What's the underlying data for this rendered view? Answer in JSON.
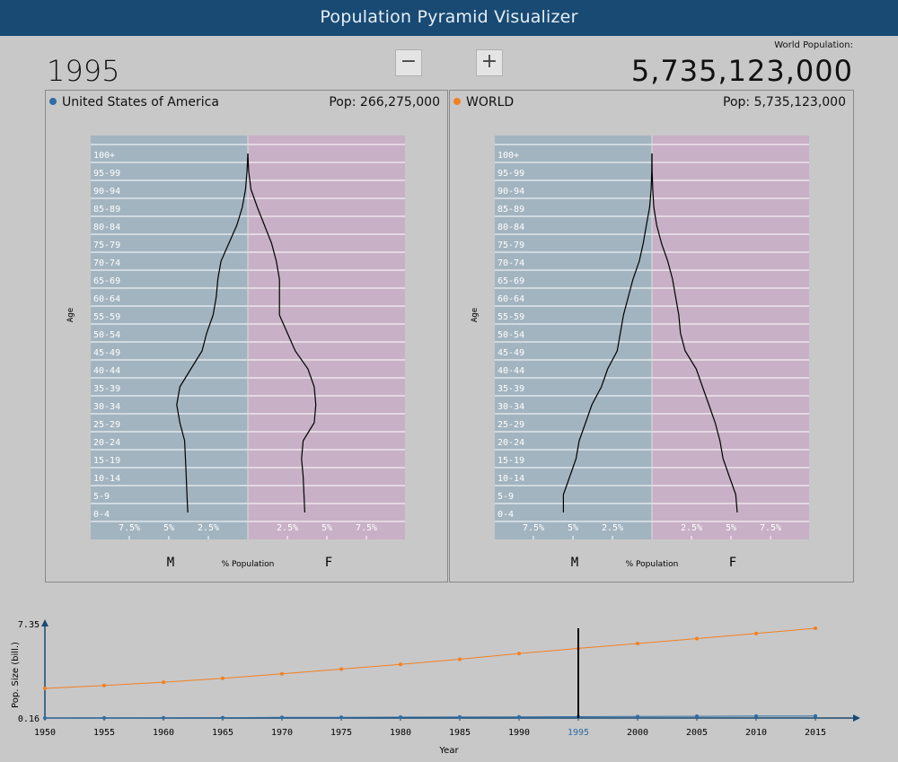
{
  "header": {
    "title": "Population Pyramid Visualizer"
  },
  "controls": {
    "year": "1995",
    "minus": "−",
    "plus": "+"
  },
  "world": {
    "label": "World Population:",
    "value": "5,735,123,000"
  },
  "colors": {
    "male": "#a2b4c0",
    "female": "#c8b0c6",
    "usa": "#2f6da3",
    "world": "#f28020",
    "header": "#184a73"
  },
  "age_groups": [
    "0-4",
    "5-9",
    "10-14",
    "15-19",
    "20-24",
    "25-29",
    "30-34",
    "35-39",
    "40-44",
    "45-49",
    "50-54",
    "55-59",
    "60-64",
    "65-69",
    "70-74",
    "75-79",
    "80-84",
    "85-89",
    "90-94",
    "95-99",
    "100+"
  ],
  "pyramid_axis": {
    "ylabel": "Age",
    "xlabel": "% Population",
    "male": "M",
    "female": "F",
    "ticks": [
      "7.5%",
      "5%",
      "2.5%",
      "2.5%",
      "5%",
      "7.5%"
    ]
  },
  "panels": [
    {
      "name": "United States of America",
      "pop_label": "Pop: 266,275,000",
      "dot_color": "#2f6da3",
      "male": [
        3.8,
        3.85,
        3.9,
        3.95,
        4.0,
        4.3,
        4.5,
        4.3,
        3.6,
        2.9,
        2.6,
        2.2,
        2.0,
        1.9,
        1.7,
        1.2,
        0.7,
        0.35,
        0.15,
        0.05,
        0.0
      ],
      "female": [
        3.6,
        3.55,
        3.5,
        3.4,
        3.5,
        4.2,
        4.3,
        4.2,
        3.8,
        3.0,
        2.5,
        2.0,
        2.0,
        2.0,
        1.8,
        1.5,
        1.05,
        0.6,
        0.2,
        0.05,
        0.0
      ]
    },
    {
      "name": "WORLD",
      "pop_label": "Pop: 5,735,123,000",
      "dot_color": "#f28020",
      "male": [
        5.6,
        5.6,
        5.2,
        4.8,
        4.6,
        4.2,
        3.8,
        3.2,
        2.8,
        2.2,
        2.0,
        1.8,
        1.5,
        1.2,
        0.8,
        0.55,
        0.35,
        0.15,
        0.05,
        0.01,
        0.0
      ],
      "female": [
        5.4,
        5.3,
        4.9,
        4.5,
        4.3,
        4.0,
        3.6,
        3.2,
        2.8,
        2.1,
        1.8,
        1.7,
        1.5,
        1.3,
        1.0,
        0.6,
        0.3,
        0.12,
        0.05,
        0.01,
        0.0
      ]
    }
  ],
  "chart_data": {
    "type": "line",
    "x": [
      1950,
      1955,
      1960,
      1965,
      1970,
      1975,
      1980,
      1985,
      1990,
      1995,
      2000,
      2005,
      2010,
      2015
    ],
    "series": [
      {
        "name": "WORLD",
        "color": "#f28020",
        "values": [
          2.53,
          2.77,
          3.03,
          3.34,
          3.7,
          4.08,
          4.46,
          4.87,
          5.33,
          5.74,
          6.13,
          6.52,
          6.93,
          7.35
        ]
      },
      {
        "name": "United States of America",
        "color": "#2f6da3",
        "values": [
          0.16,
          0.17,
          0.18,
          0.19,
          0.21,
          0.22,
          0.23,
          0.24,
          0.25,
          0.27,
          0.28,
          0.3,
          0.31,
          0.32
        ]
      }
    ],
    "xlabel": "Year",
    "ylabel": "Pop. Size (bill.)",
    "ylim": [
      0.16,
      7.35
    ],
    "ytick_labels": [
      "7.35",
      "0.16"
    ],
    "xtick_labels": [
      "1950",
      "1955",
      "1960",
      "1965",
      "1970",
      "1975",
      "1980",
      "1985",
      "1990",
      "1995",
      "2000",
      "2005",
      "2010",
      "2015"
    ],
    "selected_year": 1995
  }
}
